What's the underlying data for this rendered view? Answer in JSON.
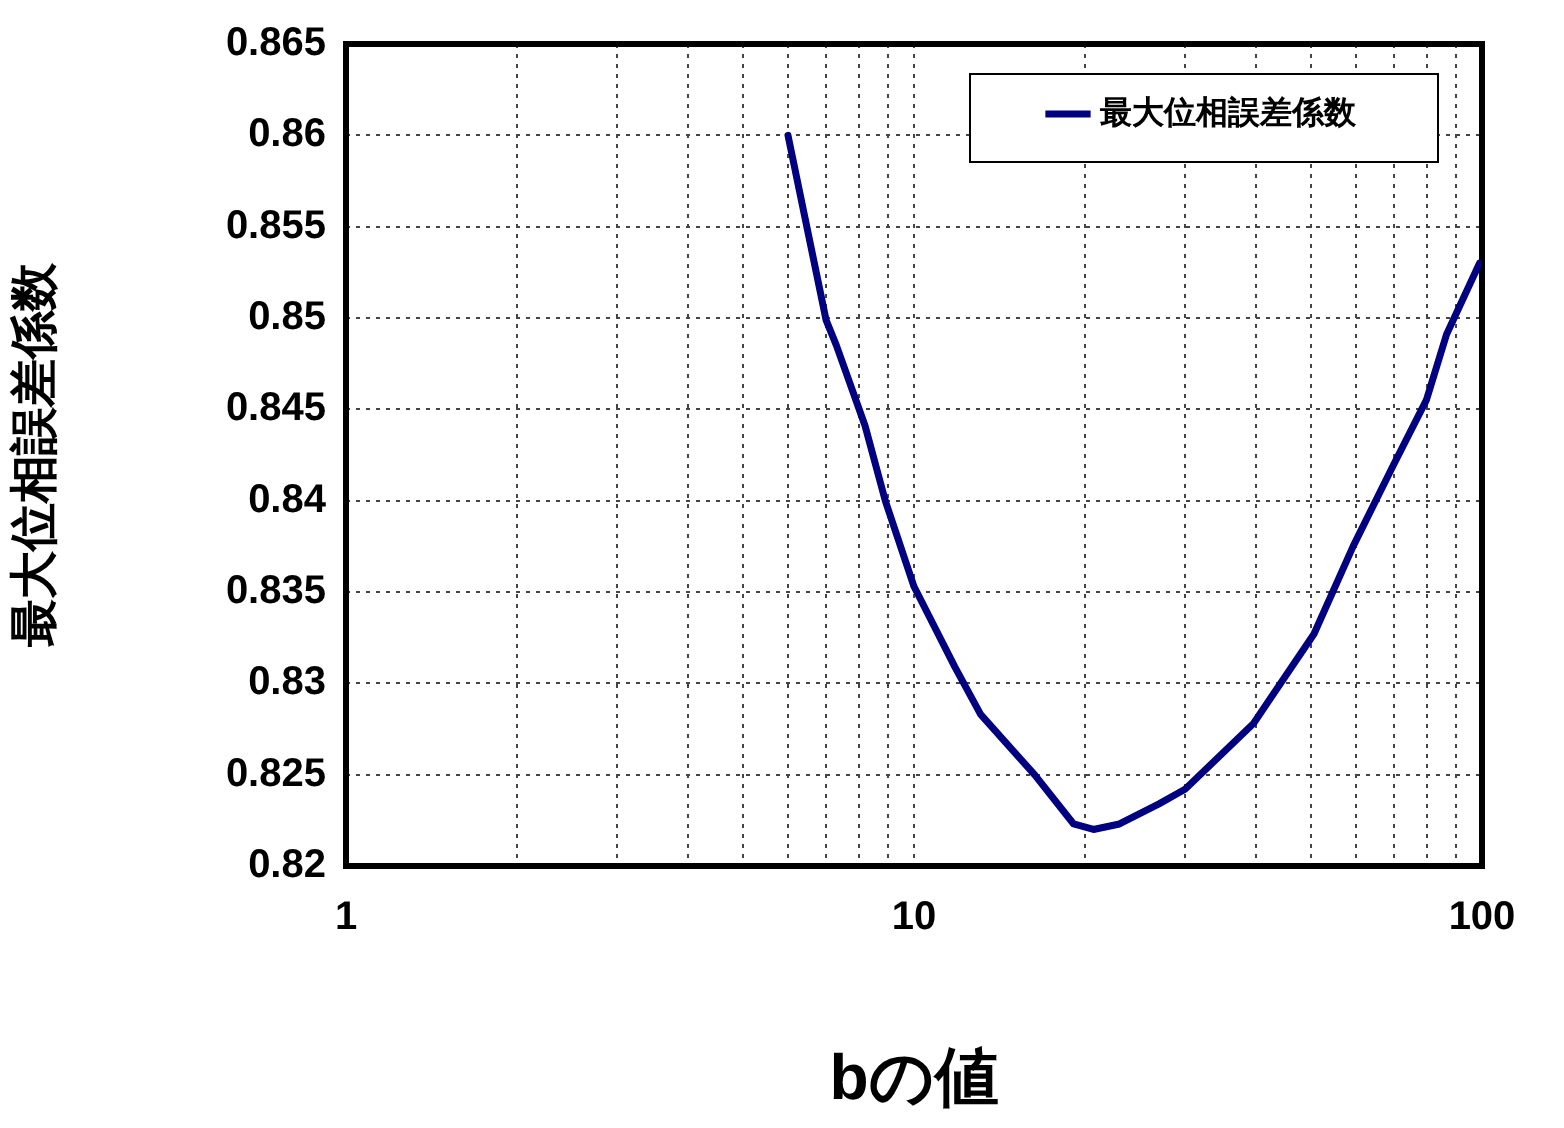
{
  "chart_data": {
    "type": "line",
    "xlabel": "bの値",
    "ylabel": "最大位相誤差係数",
    "log": "x",
    "xlim": [
      1,
      100
    ],
    "ylim": [
      0.82,
      0.865
    ],
    "xticks": [
      1,
      {
        "value": 2,
        "label": null
      },
      {
        "value": 3,
        "label": null
      },
      {
        "value": 4,
        "label": null
      },
      {
        "value": 5,
        "label": null
      },
      {
        "value": 6,
        "label": null
      },
      {
        "value": 7,
        "label": null
      },
      {
        "value": 8,
        "label": null
      },
      {
        "value": 9,
        "label": null
      },
      10,
      {
        "value": 20,
        "label": null
      },
      {
        "value": 30,
        "label": null
      },
      {
        "value": 40,
        "label": null
      },
      {
        "value": 50,
        "label": null
      },
      {
        "value": 60,
        "label": null
      },
      {
        "value": 70,
        "label": null
      },
      {
        "value": 80,
        "label": null
      },
      {
        "value": 90,
        "label": null
      },
      100
    ],
    "yticks": [
      0.82,
      0.825,
      0.83,
      0.835,
      0.84,
      0.845,
      0.85,
      0.855,
      0.86,
      0.865
    ],
    "grid": true,
    "legend": "top right",
    "marker": "none",
    "line_style": "solid",
    "series": [
      {
        "name": "最大位相誤差係数",
        "color": "#000080",
        "x": [
          6,
          7,
          7.3,
          8.2,
          8.9,
          10,
          11.8,
          13.1,
          16.3,
          19.1,
          20.7,
          23,
          27,
          30,
          39.6,
          50.6,
          59.3,
          69.7,
          79.8,
          86.6,
          99
        ],
        "values": [
          0.86,
          0.8499,
          0.8485,
          0.8441,
          0.84,
          0.8353,
          0.8309,
          0.8283,
          0.825,
          0.8223,
          0.822,
          0.8223,
          0.8234,
          0.8242,
          0.8278,
          0.8327,
          0.8375,
          0.8419,
          0.8455,
          0.8491,
          0.853
        ]
      }
    ]
  }
}
